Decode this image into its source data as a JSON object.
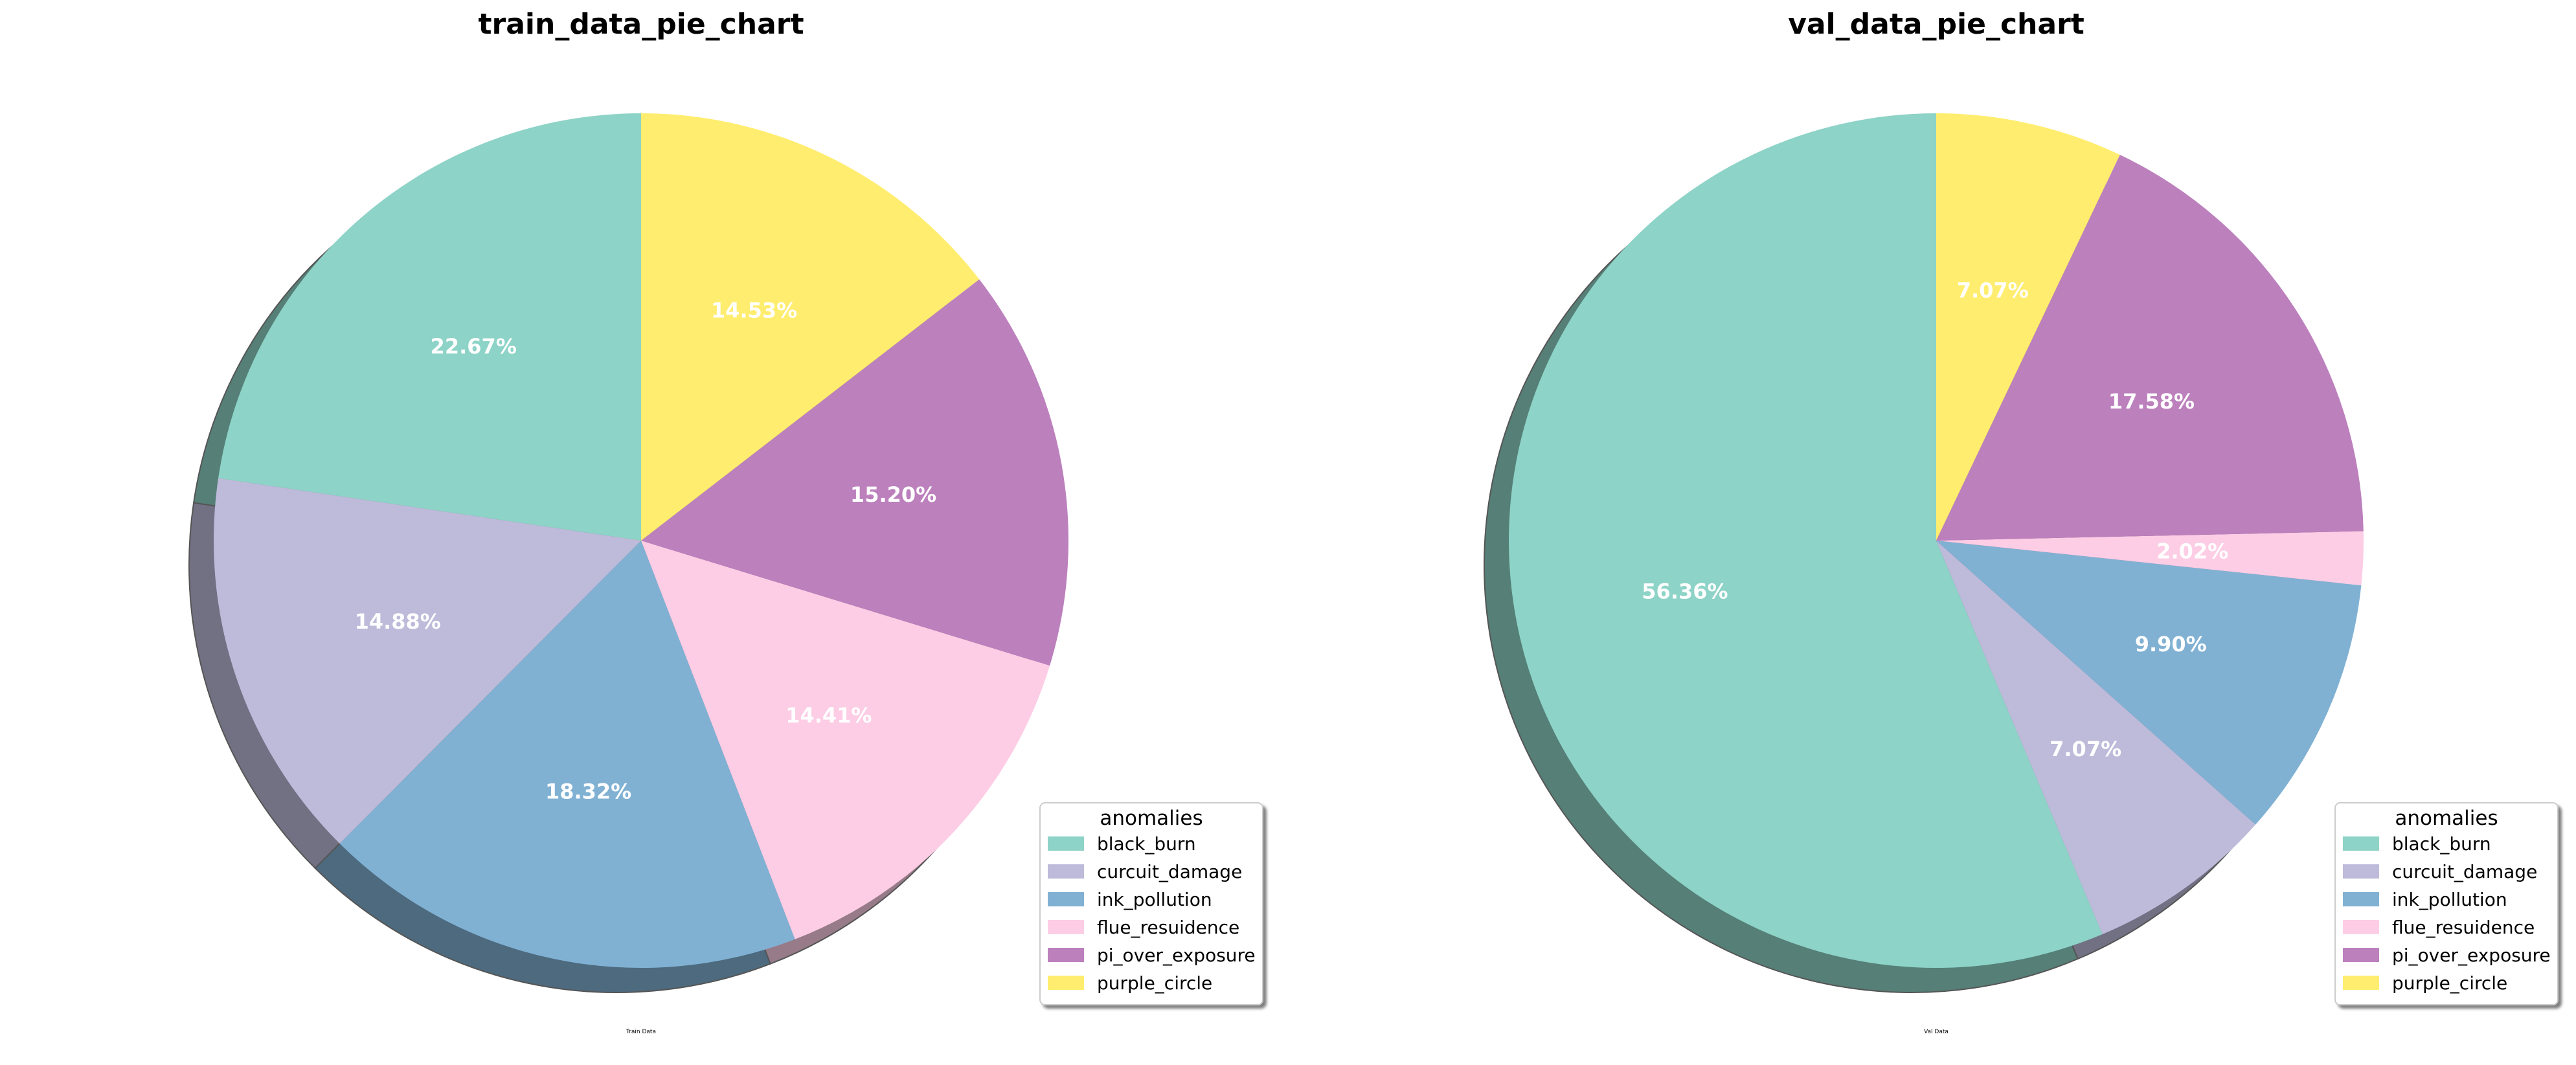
{
  "chart_data": [
    {
      "type": "pie",
      "title": "train_data_pie_chart",
      "xlabel": "Train Data",
      "categories": [
        "black_burn",
        "curcuit_damage",
        "ink_pollution",
        "flue_resuidence",
        "pi_over_exposure",
        "purple_circle"
      ],
      "values": [
        22.67,
        14.88,
        18.32,
        14.41,
        15.2,
        14.53
      ],
      "value_labels": [
        "22.67%",
        "14.88%",
        "18.32%",
        "14.41%",
        "15.20%",
        "14.53%"
      ],
      "colors": [
        "#8dd3c7",
        "#bebada",
        "#80b1d3",
        "#fccde5",
        "#bc80bd",
        "#ffed6f"
      ],
      "start_angle": 90,
      "direction": "counterclockwise",
      "shadow": true,
      "legend_title": "anomalies",
      "legend_position": "lower-right"
    },
    {
      "type": "pie",
      "title": "val_data_pie_chart",
      "xlabel": "Val Data",
      "categories": [
        "black_burn",
        "curcuit_damage",
        "ink_pollution",
        "flue_resuidence",
        "pi_over_exposure",
        "purple_circle"
      ],
      "values": [
        56.36,
        7.07,
        9.9,
        2.02,
        17.58,
        7.07
      ],
      "value_labels": [
        "56.36%",
        "7.07%",
        "9.90%",
        "2.02%",
        "17.58%",
        "7.07%"
      ],
      "colors": [
        "#8dd3c7",
        "#bebada",
        "#80b1d3",
        "#fccde5",
        "#bc80bd",
        "#ffed6f"
      ],
      "start_angle": 90,
      "direction": "counterclockwise",
      "shadow": true,
      "legend_title": "anomalies",
      "legend_position": "lower-right"
    }
  ]
}
